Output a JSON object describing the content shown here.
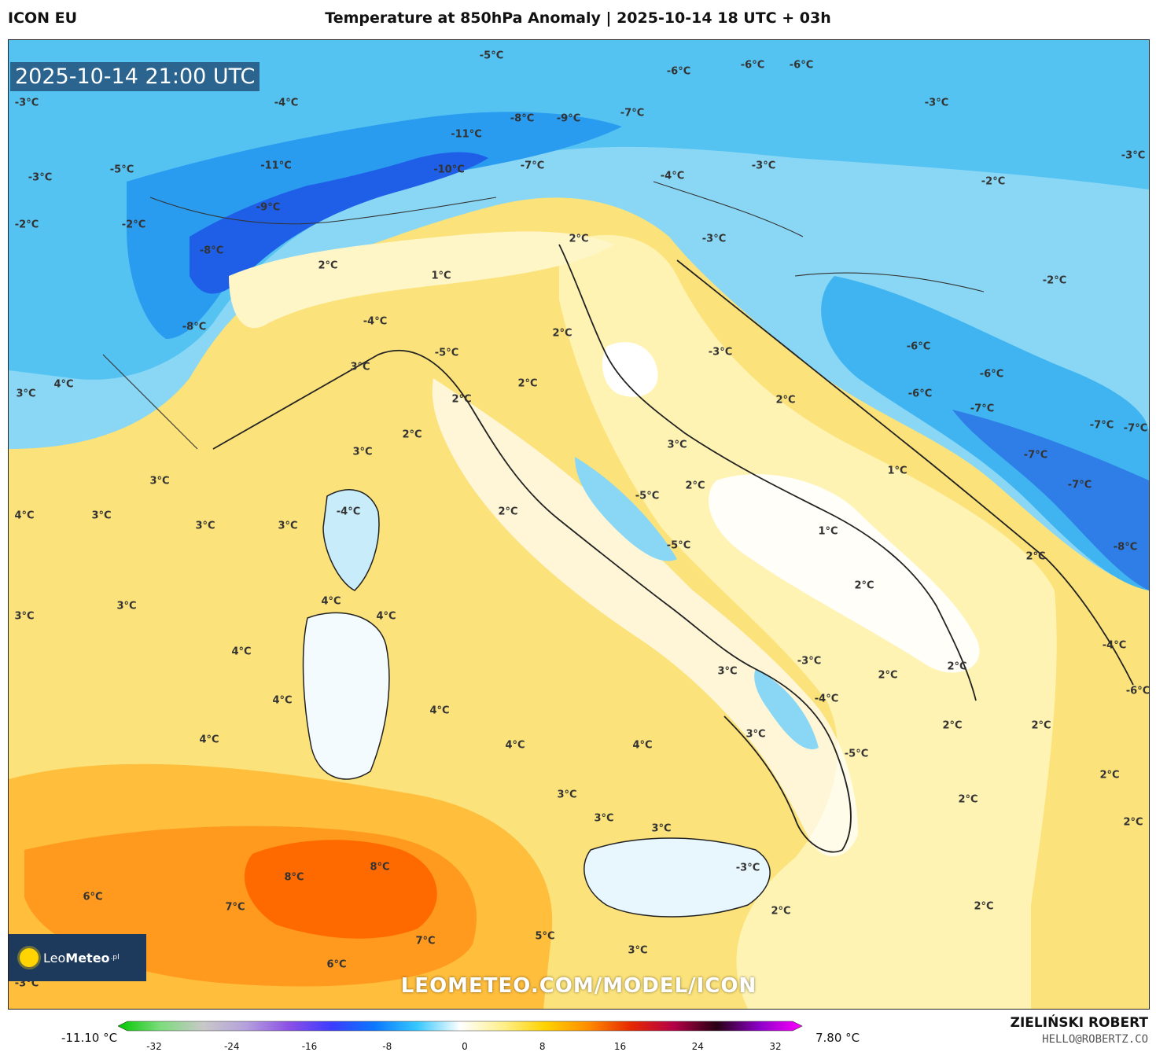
{
  "header": {
    "model": "ICON EU",
    "title": "Temperature at 850hPa Anomaly | 2025-10-14 18 UTC + 03h"
  },
  "map": {
    "timestamp": "2025-10-14 21:00 UTC",
    "watermark": "LEOMETEO.COM/MODEL/ICON",
    "logo": {
      "text_main": "Leo",
      "text_bold": "Meteo",
      "text_suffix": ".pl"
    },
    "temperature_labels": [
      "-5°C",
      "-6°C",
      "-6°C",
      "-6°C",
      "-3°C",
      "-4°C",
      "-8°C",
      "-9°C",
      "-7°C",
      "-11°C",
      "-10°C",
      "-7°C",
      "-11°C",
      "-3°C",
      "-3°C",
      "-3°C",
      "-5°C",
      "-4°C",
      "-2°C",
      "-2°C",
      "-2°C",
      "-9°C",
      "-8°C",
      "-3°C",
      "-3°C",
      "2°C",
      "2°C",
      "1°C",
      "-8°C",
      "-4°C",
      "-2°C",
      "-6°C",
      "-5°C",
      "-6°C",
      "-7°C",
      "-6°C",
      "-7°C",
      "-7°C",
      "-7°C",
      "-7°C",
      "-8°C",
      "-4°C",
      "-6°C",
      "3°C",
      "4°C",
      "3°C",
      "2°C",
      "2°C",
      "-3°C",
      "2°C",
      "2°C",
      "3°C",
      "3°C",
      "2°C",
      "1°C",
      "3°C",
      "2°C",
      "-4°C",
      "4°C",
      "3°C",
      "3°C",
      "3°C",
      "2°C",
      "-5°C",
      "-5°C",
      "1°C",
      "2°C",
      "2°C",
      "3°C",
      "4°C",
      "4°C",
      "3°C",
      "4°C",
      "-3°C",
      "2°C",
      "2°C",
      "4°C",
      "4°C",
      "4°C",
      "3°C",
      "4°C",
      "4°C",
      "-4°C",
      "2°C",
      "2°C",
      "3°C",
      "-5°C",
      "2°C",
      "3°C",
      "3°C",
      "3°C",
      "2°C",
      "2°C",
      "6°C",
      "8°C",
      "8°C",
      "7°C",
      "-3°C",
      "2°C",
      "2°C",
      "7°C",
      "5°C",
      "6°C",
      "3°C",
      "-3°C"
    ]
  },
  "colorbar": {
    "min_label": "-11.10 °C",
    "max_label": "7.80 °C",
    "ticks": [
      "-32",
      "-24",
      "-16",
      "-8",
      "0",
      "8",
      "16",
      "24",
      "32"
    ],
    "stops": [
      "#00c800",
      "#7ddc7d",
      "#c8c8c8",
      "#b4a0dc",
      "#8c50e6",
      "#3c3cff",
      "#0a78ff",
      "#37c8ff",
      "#ffffff",
      "#fff08c",
      "#ffd200",
      "#ff8c00",
      "#e62800",
      "#b40046",
      "#280014",
      "#8c00c8",
      "#ff00ff"
    ]
  },
  "credit": {
    "name": "ZIELIŃSKI ROBERT",
    "email": "HELLO@ROBERTZ.CO"
  }
}
